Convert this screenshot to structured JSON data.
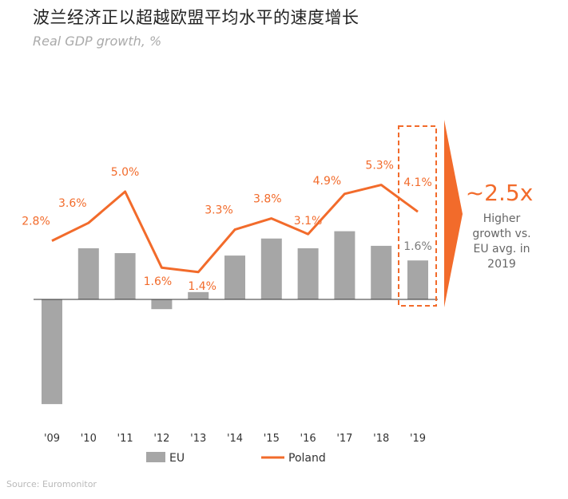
{
  "chart_data": {
    "type": "bar",
    "title": "波兰经济正以超越欧盟平均水平的速度增长",
    "subtitle": "Real GDP growth, %",
    "categories": [
      "'09",
      "'10",
      "'11",
      "'12",
      "'13",
      "'14",
      "'15",
      "'16",
      "'17",
      "'18",
      "'19"
    ],
    "series": [
      {
        "name": "EU",
        "kind": "bar",
        "values": [
          -4.3,
          2.1,
          1.9,
          -0.4,
          0.3,
          1.8,
          2.5,
          2.1,
          2.8,
          2.2,
          1.6
        ]
      },
      {
        "name": "Poland",
        "kind": "line",
        "values": [
          2.8,
          3.6,
          5.0,
          1.6,
          1.4,
          3.3,
          3.8,
          3.1,
          4.9,
          5.3,
          4.1
        ]
      }
    ],
    "labels": {
      "poland": [
        "2.8%",
        "3.6%",
        "5.0%",
        "1.6%",
        "1.4%",
        "3.3%",
        "3.8%",
        "3.1%",
        "4.9%",
        "5.3%",
        "4.1%"
      ],
      "eu_2019": "1.6%"
    },
    "ylim": [
      -4.5,
      5.5
    ],
    "colors": {
      "eu": "#A6A6A6",
      "poland": "#F26B2B",
      "callout": "#F26B2B",
      "axis": "#333333"
    },
    "legend": [
      {
        "name": "EU",
        "type": "bar"
      },
      {
        "name": "Poland",
        "type": "line"
      }
    ],
    "callout": {
      "big": "~2.5x",
      "lines": [
        "Higher",
        "growth vs.",
        "EU avg. in",
        "2019"
      ]
    }
  },
  "source": "Source: Euromonitor"
}
